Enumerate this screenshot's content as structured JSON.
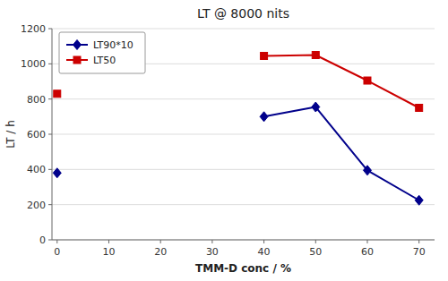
{
  "chart_data": {
    "type": "line",
    "title": "LT @ 8000 nits",
    "xlabel": "TMM-D conc / %",
    "ylabel": "LT / h",
    "x": [
      0,
      null,
      40,
      50,
      60,
      70
    ],
    "series": [
      {
        "name": "LT90*10",
        "color": "#00008B",
        "marker": "diamond",
        "values": [
          380,
          null,
          700,
          755,
          395,
          225
        ]
      },
      {
        "name": "LT50",
        "color": "#CC0000",
        "marker": "square",
        "values": [
          830,
          null,
          1045,
          1050,
          905,
          750
        ]
      }
    ],
    "xlim": [
      -1,
      73
    ],
    "ylim": [
      0,
      1200
    ],
    "xticks": [
      0,
      10,
      20,
      30,
      40,
      50,
      60,
      70
    ],
    "yticks": [
      0,
      200,
      400,
      600,
      800,
      1000,
      1200
    ],
    "grid": "y",
    "legend": "upper left"
  }
}
